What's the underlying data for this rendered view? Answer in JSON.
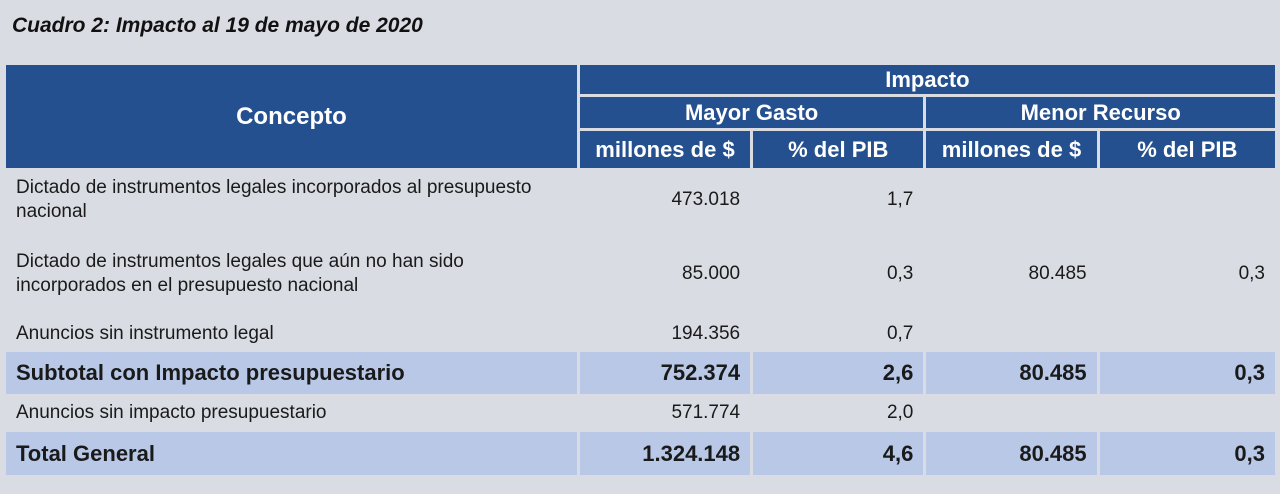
{
  "title": "Cuadro 2: Impacto al 19 de mayo de 2020",
  "header": {
    "concepto": "Concepto",
    "impacto": "Impacto",
    "mayor_gasto": "Mayor Gasto",
    "menor_recurso": "Menor Recurso",
    "col_millones": "millones de $",
    "col_pib": "% del PIB"
  },
  "rows": [
    {
      "label": "Dictado de instrumentos legales incorporados al presupuesto nacional",
      "mg_millones": "473.018",
      "mg_pib": "1,7",
      "mr_millones": "",
      "mr_pib": ""
    },
    {
      "label": "Dictado de instrumentos legales que aún no han sido incorporados en el presupuesto nacional",
      "mg_millones": "85.000",
      "mg_pib": "0,3",
      "mr_millones": "80.485",
      "mr_pib": "0,3"
    },
    {
      "label": "Anuncios sin instrumento legal",
      "mg_millones": "194.356",
      "mg_pib": "0,7",
      "mr_millones": "",
      "mr_pib": ""
    },
    {
      "label": "Subtotal con Impacto presupuestario",
      "mg_millones": "752.374",
      "mg_pib": "2,6",
      "mr_millones": "80.485",
      "mr_pib": "0,3"
    },
    {
      "label": "Anuncios sin impacto presupuestario",
      "mg_millones": "571.774",
      "mg_pib": "2,0",
      "mr_millones": "",
      "mr_pib": ""
    },
    {
      "label": "Total General",
      "mg_millones": "1.324.148",
      "mg_pib": "4,6",
      "mr_millones": "80.485",
      "mr_pib": "0,3"
    }
  ]
}
